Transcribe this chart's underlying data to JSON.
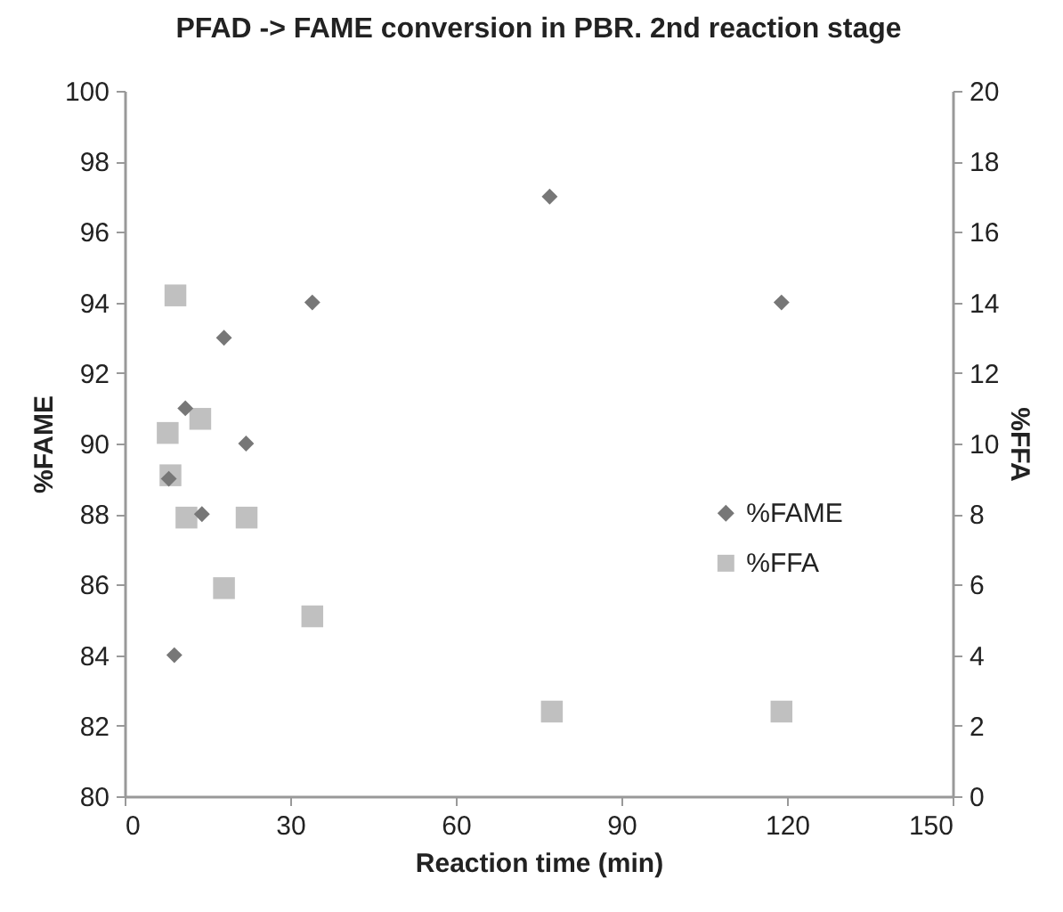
{
  "chart_data": {
    "type": "scatter",
    "title": "PFAD -> FAME conversion in PBR. 2nd reaction stage",
    "xlabel": "Reaction time (min)",
    "ylabel": "%FAME",
    "y2label": "%FFA",
    "xlim": [
      0,
      150
    ],
    "xticks": [
      0,
      30,
      60,
      90,
      120,
      150
    ],
    "ylim": [
      80,
      100
    ],
    "yticks": [
      80,
      82,
      84,
      86,
      88,
      90,
      92,
      94,
      96,
      98,
      100
    ],
    "y2lim": [
      0,
      20
    ],
    "y2ticks": [
      0,
      2,
      4,
      6,
      8,
      10,
      12,
      14,
      16,
      18,
      20
    ],
    "legend": "right",
    "grid": false,
    "series": [
      {
        "name": "%FAME",
        "color": "#777777",
        "marker": "diamond",
        "x": [
          8,
          9,
          11,
          14,
          18,
          22,
          34,
          77,
          119
        ],
        "values": [
          89,
          84,
          91,
          88,
          93,
          90,
          94,
          97,
          94
        ]
      },
      {
        "name": "%FFA",
        "color": "#c0c0c0",
        "marker": "square",
        "axis": "y2",
        "x": [
          7.8,
          8.3,
          9.2,
          11.2,
          13.7,
          18,
          22.1,
          34,
          77.4,
          119
        ],
        "values": [
          10.3,
          9.1,
          14.2,
          7.9,
          10.7,
          5.9,
          7.9,
          5.1,
          2.4,
          2.4
        ]
      }
    ]
  }
}
